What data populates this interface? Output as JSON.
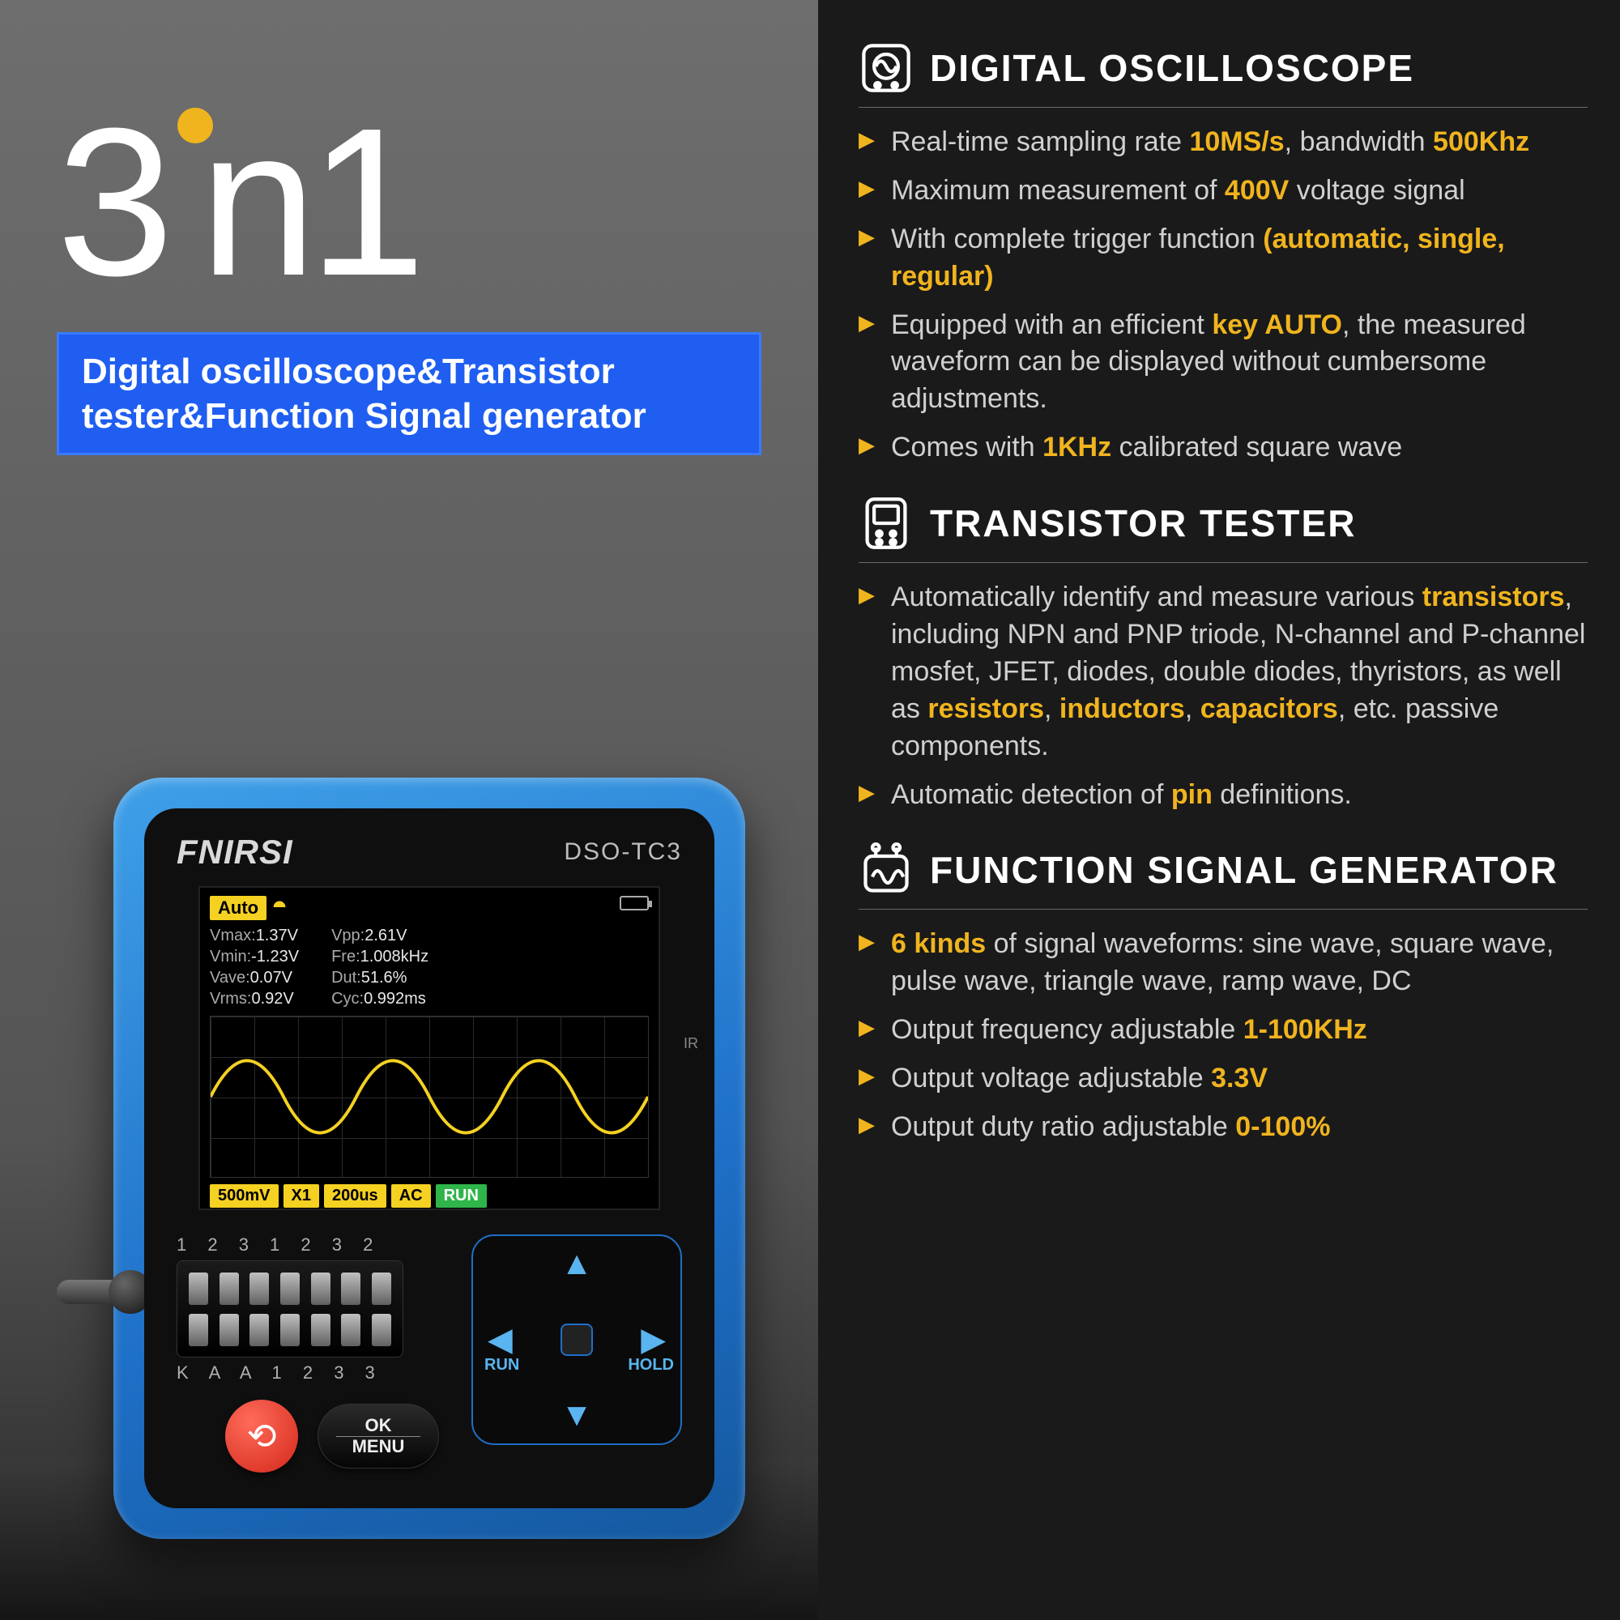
{
  "title": {
    "main_pre": "3",
    "main_mid": "in",
    "main_post": "1",
    "subtitle": "Digital oscilloscope&Transistor tester&Function Signal generator"
  },
  "device": {
    "brand": "FNIRSI",
    "model": "DSO-TC3",
    "ir_label": "IR",
    "screen": {
      "mode": "Auto",
      "measurements_left": [
        {
          "label": "Vmax:",
          "value": "1.37V"
        },
        {
          "label": "Vmin:",
          "value": "-1.23V"
        },
        {
          "label": "Vave:",
          "value": "0.07V"
        },
        {
          "label": "Vrms:",
          "value": "0.92V"
        }
      ],
      "measurements_right": [
        {
          "label": "Vpp:",
          "value": "2.61V"
        },
        {
          "label": "Fre:",
          "value": "1.008kHz"
        },
        {
          "label": "Dut:",
          "value": "51.6%"
        },
        {
          "label": "Cyc:",
          "value": "0.992ms"
        }
      ],
      "bottom_chips": [
        "500mV",
        "X1",
        "200us",
        "AC",
        "RUN"
      ],
      "wave_color": "#f5d122"
    },
    "socket_top": "1 2 3  1 2 3 2",
    "socket_bottom": "K A A  1 2 3 3",
    "dpad": {
      "run": "RUN",
      "hold": "HOLD"
    },
    "ok_top": "OK",
    "ok_bottom": "MENU",
    "back_glyph": "⟲"
  },
  "sections": [
    {
      "title": "DIGITAL OSCILLOSCOPE",
      "icon": "oscilloscope",
      "bullets": [
        [
          {
            "t": "Real-time sampling rate "
          },
          {
            "t": "10MS/s",
            "hl": true
          },
          {
            "t": ", bandwidth "
          },
          {
            "t": "500Khz",
            "hl": true
          }
        ],
        [
          {
            "t": "Maximum measurement of "
          },
          {
            "t": "400V",
            "hl": true
          },
          {
            "t": " voltage signal"
          }
        ],
        [
          {
            "t": "With complete trigger function "
          },
          {
            "t": "(automatic, single, regular)",
            "hl": true
          }
        ],
        [
          {
            "t": "Equipped with an efficient "
          },
          {
            "t": "key AUTO",
            "hl": true
          },
          {
            "t": ", the measured waveform can be displayed without cumbersome adjustments."
          }
        ],
        [
          {
            "t": "Comes with "
          },
          {
            "t": "1KHz",
            "hl": true
          },
          {
            "t": " calibrated square wave"
          }
        ]
      ]
    },
    {
      "title": "TRANSISTOR TESTER",
      "icon": "tester",
      "bullets": [
        [
          {
            "t": "Automatically identify and measure various "
          },
          {
            "t": "transistors",
            "hl": true
          },
          {
            "t": ", including NPN and PNP triode, N-channel and P-channel mosfet, JFET, diodes, double diodes, thyristors, as well as "
          },
          {
            "t": "resistors",
            "hl": true
          },
          {
            "t": ", "
          },
          {
            "t": "inductors",
            "hl": true
          },
          {
            "t": ", "
          },
          {
            "t": "capacitors",
            "hl": true
          },
          {
            "t": ", etc. passive components."
          }
        ],
        [
          {
            "t": "Automatic detection of "
          },
          {
            "t": "pin",
            "hl": true
          },
          {
            "t": " definitions."
          }
        ]
      ]
    },
    {
      "title": "FUNCTION SIGNAL GENERATOR",
      "icon": "generator",
      "bullets": [
        [
          {
            "t": "6 kinds",
            "hl": true
          },
          {
            "t": " of signal waveforms: sine wave, square wave, pulse wave, triangle wave, ramp wave, DC"
          }
        ],
        [
          {
            "t": "Output frequency adjustable "
          },
          {
            "t": "1-100KHz",
            "hl": true
          }
        ],
        [
          {
            "t": "Output voltage adjustable "
          },
          {
            "t": "3.3V",
            "hl": true
          }
        ],
        [
          {
            "t": "Output duty ratio adjustable "
          },
          {
            "t": "0-100%",
            "hl": true
          }
        ]
      ]
    }
  ],
  "colors": {
    "accent": "#f0b41e",
    "blue": "#1f5ef0",
    "device_blue": "#2a8fd6"
  }
}
